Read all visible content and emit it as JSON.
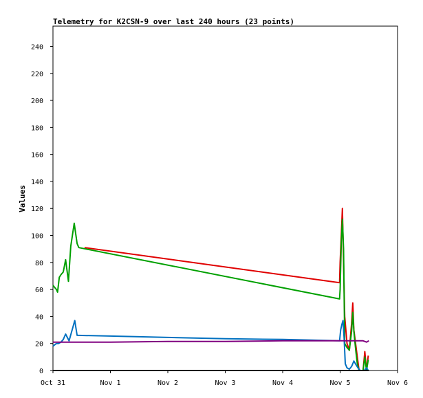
{
  "chart_data": {
    "type": "line",
    "title": "Telemetry for K2CSN-9 over last 240 hours (23 points)",
    "xlabel": "",
    "ylabel": "Values",
    "x_tick_labels": [
      "Oct 31",
      "Nov 1",
      "Nov 2",
      "Nov 3",
      "Nov 4",
      "Nov 5",
      "Nov 6"
    ],
    "xlim_days": [
      0,
      6
    ],
    "ylim": [
      0,
      255
    ],
    "y_ticks": [
      0,
      20,
      40,
      60,
      80,
      100,
      120,
      140,
      160,
      180,
      200,
      220,
      240
    ],
    "grid": false,
    "legend": "none",
    "series": [
      {
        "color": "#e00000",
        "points": [
          [
            0.55,
            91
          ],
          [
            4.99,
            65
          ],
          [
            5.0,
            80
          ],
          [
            5.02,
            100
          ],
          [
            5.04,
            120
          ],
          [
            5.06,
            80
          ],
          [
            5.08,
            40
          ],
          [
            5.12,
            20
          ],
          [
            5.16,
            15
          ],
          [
            5.2,
            35
          ],
          [
            5.22,
            50
          ],
          [
            5.24,
            30
          ],
          [
            5.27,
            20
          ],
          [
            5.3,
            10
          ],
          [
            5.33,
            0
          ],
          [
            5.4,
            0
          ],
          [
            5.43,
            14
          ],
          [
            5.46,
            0
          ],
          [
            5.49,
            11
          ]
        ]
      },
      {
        "color": "#00a000",
        "points": [
          [
            0.0,
            63
          ],
          [
            0.06,
            60
          ],
          [
            0.08,
            58
          ],
          [
            0.11,
            69
          ],
          [
            0.14,
            71
          ],
          [
            0.18,
            73
          ],
          [
            0.22,
            82
          ],
          [
            0.27,
            66
          ],
          [
            0.31,
            92
          ],
          [
            0.37,
            109
          ],
          [
            0.42,
            94
          ],
          [
            0.45,
            91
          ],
          [
            4.99,
            53
          ],
          [
            5.0,
            60
          ],
          [
            5.02,
            95
          ],
          [
            5.04,
            112
          ],
          [
            5.06,
            90
          ],
          [
            5.08,
            20
          ],
          [
            5.12,
            17
          ],
          [
            5.16,
            15
          ],
          [
            5.2,
            29
          ],
          [
            5.22,
            43
          ],
          [
            5.24,
            29
          ],
          [
            5.27,
            16
          ],
          [
            5.3,
            5
          ],
          [
            5.33,
            0
          ],
          [
            5.4,
            0
          ],
          [
            5.43,
            10
          ],
          [
            5.46,
            0
          ],
          [
            5.49,
            8
          ]
        ]
      },
      {
        "color": "#0070c0",
        "points": [
          [
            0.0,
            18
          ],
          [
            0.06,
            20
          ],
          [
            0.1,
            20
          ],
          [
            0.14,
            21
          ],
          [
            0.18,
            23
          ],
          [
            0.22,
            27
          ],
          [
            0.28,
            22
          ],
          [
            0.34,
            31
          ],
          [
            0.38,
            37
          ],
          [
            0.42,
            26
          ],
          [
            0.45,
            26
          ],
          [
            1.0,
            25.5
          ],
          [
            2.0,
            24.5
          ],
          [
            3.0,
            23.5
          ],
          [
            4.0,
            23
          ],
          [
            4.99,
            22
          ],
          [
            5.01,
            30
          ],
          [
            5.03,
            34
          ],
          [
            5.05,
            37
          ],
          [
            5.07,
            24
          ],
          [
            5.09,
            5
          ],
          [
            5.12,
            2
          ],
          [
            5.16,
            1
          ],
          [
            5.2,
            3
          ],
          [
            5.24,
            7
          ],
          [
            5.28,
            4
          ],
          [
            5.31,
            2
          ],
          [
            5.35,
            0
          ],
          [
            5.42,
            0
          ],
          [
            5.46,
            2
          ],
          [
            5.49,
            0
          ]
        ]
      },
      {
        "color": "#800080",
        "points": [
          [
            0.0,
            21
          ],
          [
            1.0,
            21
          ],
          [
            2.0,
            21.5
          ],
          [
            3.0,
            21.5
          ],
          [
            4.0,
            22
          ],
          [
            5.0,
            22
          ],
          [
            5.2,
            22
          ],
          [
            5.4,
            22
          ],
          [
            5.46,
            21
          ],
          [
            5.5,
            22
          ]
        ]
      },
      {
        "color": "#000000",
        "points": [
          [
            0.0,
            0
          ],
          [
            5.5,
            0
          ]
        ]
      }
    ]
  }
}
